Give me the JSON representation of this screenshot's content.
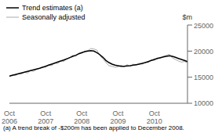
{
  "chart_data": {
    "type": "line",
    "ylabel": "$m",
    "footnote": "(a) A trend break of -$200m has been applied to December 2008.",
    "categories": [
      "Oct 2006",
      null,
      null,
      null,
      null,
      null,
      null,
      null,
      null,
      null,
      null,
      null,
      "Oct 2007",
      null,
      null,
      null,
      null,
      null,
      null,
      null,
      null,
      null,
      null,
      null,
      "Oct 2008",
      null,
      null,
      null,
      null,
      null,
      null,
      null,
      null,
      null,
      null,
      null,
      "Oct 2009",
      null,
      null,
      null,
      null,
      null,
      null,
      null,
      null,
      null,
      null,
      null,
      "Oct 2010",
      null,
      null,
      null,
      null,
      null,
      null,
      null,
      null,
      null,
      null,
      null
    ],
    "series": [
      {
        "name": "Trend estimates (a)",
        "color": "#000000",
        "values": [
          15200,
          15350,
          15500,
          15650,
          15800,
          15950,
          16100,
          16250,
          16400,
          16550,
          16700,
          16900,
          17100,
          17300,
          17500,
          17700,
          17900,
          18100,
          18300,
          18500,
          18750,
          19000,
          19200,
          19500,
          19700,
          19900,
          20000,
          20100,
          20000,
          19700,
          19300,
          18800,
          18200,
          17800,
          17500,
          17300,
          17200,
          17100,
          17100,
          17150,
          17200,
          17300,
          17400,
          17500,
          17650,
          17800,
          18000,
          18200,
          18400,
          18600,
          18750,
          18900,
          19000,
          19100,
          19000,
          18800,
          18600,
          18400,
          18200,
          18000
        ]
      },
      {
        "name": "Seasonally adjusted",
        "color": "#aaaaaa",
        "values": [
          15100,
          15500,
          15300,
          15700,
          15600,
          16000,
          15800,
          16300,
          16100,
          16500,
          16700,
          17000,
          16900,
          17400,
          17200,
          17800,
          17600,
          18200,
          18000,
          18600,
          18700,
          19200,
          19000,
          19600,
          19600,
          20000,
          20100,
          20500,
          20400,
          20200,
          19100,
          18500,
          17800,
          17200,
          17100,
          16900,
          17000,
          17300,
          17000,
          17400,
          17100,
          17500,
          17300,
          17700,
          17500,
          17900,
          17800,
          18300,
          18200,
          18700,
          18600,
          19000,
          19200,
          19400,
          18700,
          18400,
          18100,
          17900,
          18000,
          17800
        ]
      }
    ],
    "ylim": [
      10000,
      25000
    ],
    "yticks": [
      10000,
      15000,
      20000,
      25000
    ],
    "grid": false,
    "legend": "upper left"
  }
}
